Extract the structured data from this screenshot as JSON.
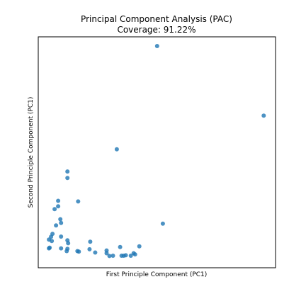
{
  "chart_data": {
    "type": "scatter",
    "title": "Principal Component Analysis (PAC)",
    "subtitle": "Coverage: 91.22%",
    "xlabel": "First Principle Component (PC1)",
    "ylabel": "Second Principle Component (PC1)",
    "xticks_shown": false,
    "yticks_shown": false,
    "grid": false,
    "xlim": [
      0,
      100
    ],
    "ylim": [
      0,
      100
    ],
    "series": [
      {
        "color": "#1f77b4",
        "points": [
          [
            50.1,
            96.0
          ],
          [
            95.0,
            65.9
          ],
          [
            33.1,
            51.3
          ],
          [
            52.5,
            19.1
          ],
          [
            12.3,
            41.7
          ],
          [
            12.3,
            38.9
          ],
          [
            8.4,
            29.0
          ],
          [
            16.8,
            28.7
          ],
          [
            8.4,
            26.6
          ],
          [
            6.9,
            25.4
          ],
          [
            9.3,
            21.0
          ],
          [
            9.6,
            19.4
          ],
          [
            7.5,
            18.3
          ],
          [
            6.0,
            14.7
          ],
          [
            5.4,
            13.4
          ],
          [
            4.5,
            12.2
          ],
          [
            5.7,
            11.6
          ],
          [
            9.6,
            13.5
          ],
          [
            12.3,
            11.9
          ],
          [
            12.6,
            10.6
          ],
          [
            4.8,
            8.7
          ],
          [
            4.5,
            8.4
          ],
          [
            9.6,
            8.4
          ],
          [
            12.3,
            8.2
          ],
          [
            12.0,
            7.2
          ],
          [
            16.5,
            7.2
          ],
          [
            17.1,
            7.0
          ],
          [
            21.9,
            11.3
          ],
          [
            21.6,
            8.0
          ],
          [
            24.0,
            6.6
          ],
          [
            28.8,
            7.5
          ],
          [
            28.8,
            6.3
          ],
          [
            30.0,
            5.1
          ],
          [
            31.5,
            5.2
          ],
          [
            34.5,
            9.0
          ],
          [
            35.1,
            5.2
          ],
          [
            36.0,
            5.2
          ],
          [
            36.9,
            5.4
          ],
          [
            39.0,
            5.2
          ],
          [
            40.2,
            6.3
          ],
          [
            42.6,
            9.3
          ],
          [
            40.8,
            5.8
          ]
        ]
      }
    ]
  }
}
